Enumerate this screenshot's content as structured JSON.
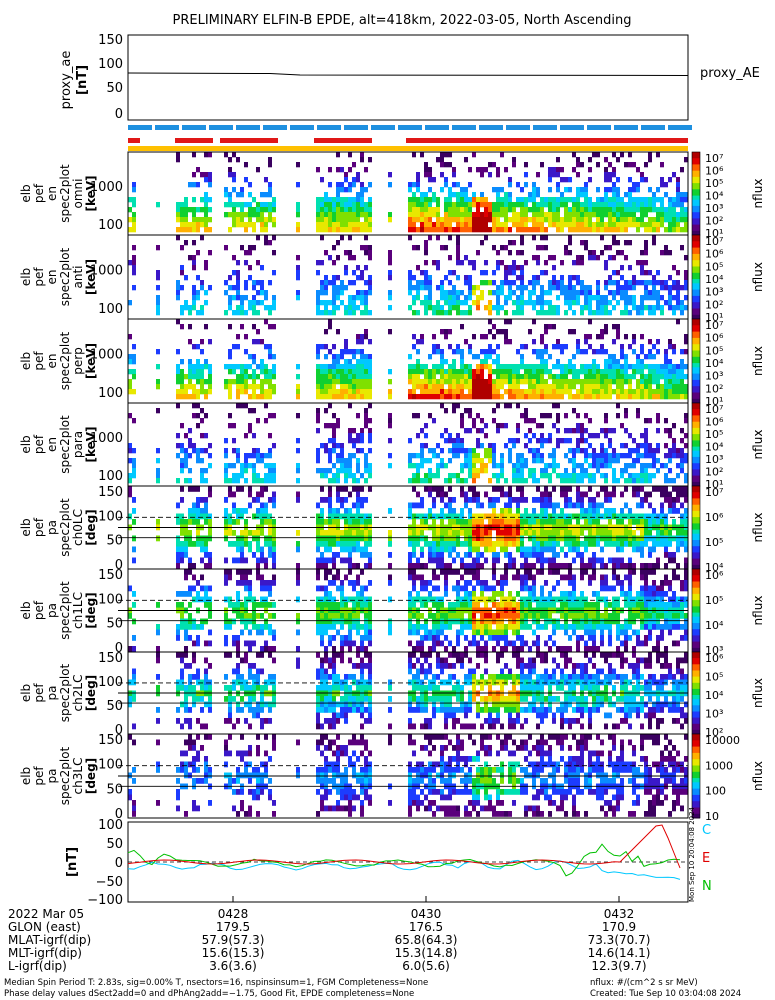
{
  "title": "PRELIMINARY ELFIN-B EPDE, alt=418km, 2022-03-05, North Ascending",
  "colors": {
    "ind_blue": "#1e90e0",
    "ind_red": "#e01818",
    "ind_yellow": "#ffc000",
    "field_c": "#00c8ff",
    "field_e": "#e00000",
    "field_n": "#00c000"
  },
  "panel1": {
    "ylabel": [
      "proxy_ae",
      "[nT]"
    ],
    "yticks": [
      "150",
      "100",
      "50",
      "0"
    ],
    "legend": "proxy_AE"
  },
  "spectrum_panels": [
    {
      "ylabel": [
        "elb",
        "pef",
        "en",
        "spec2plot",
        "omni",
        "[keV]"
      ],
      "yticks": [
        "1000",
        "100"
      ],
      "cticks": [
        "10⁷",
        "10⁶",
        "10⁵",
        "10⁴",
        "10³",
        "10²",
        "10¹"
      ],
      "cbar_label": "nflux"
    },
    {
      "ylabel": [
        "elb",
        "pef",
        "en",
        "spec2plot",
        "anti",
        "[keV]"
      ],
      "yticks": [
        "1000",
        "100"
      ],
      "cticks": [
        "10⁷",
        "10⁶",
        "10⁵",
        "10⁴",
        "10³",
        "10²",
        "10¹"
      ],
      "cbar_label": "nflux"
    },
    {
      "ylabel": [
        "elb",
        "pef",
        "en",
        "spec2plot",
        "perp",
        "[keV]"
      ],
      "yticks": [
        "1000",
        "100"
      ],
      "cticks": [
        "10⁷",
        "10⁶",
        "10⁵",
        "10⁴",
        "10³",
        "10²",
        "10¹"
      ],
      "cbar_label": "nflux"
    },
    {
      "ylabel": [
        "elb",
        "pef",
        "en",
        "spec2plot",
        "para",
        "[keV]"
      ],
      "yticks": [
        "1000",
        "100"
      ],
      "cticks": [
        "10⁷",
        "10⁶",
        "10⁵",
        "10⁴",
        "10³",
        "10²",
        "10¹"
      ],
      "cbar_label": "nflux"
    }
  ],
  "pitch_panels": [
    {
      "ylabel": [
        "elb",
        "pef",
        "pa",
        "spec2plot",
        "ch0LC",
        "[deg]"
      ],
      "yticks": [
        "150",
        "100",
        "50",
        "0"
      ],
      "cticks": [
        "10⁷",
        "10⁶",
        "10⁵",
        "10⁴"
      ],
      "cbar_label": "nflux"
    },
    {
      "ylabel": [
        "elb",
        "pef",
        "pa",
        "spec2plot",
        "ch1LC",
        "[deg]"
      ],
      "yticks": [
        "150",
        "100",
        "50",
        "0"
      ],
      "cticks": [
        "10⁶",
        "10⁵",
        "10⁴",
        "10³"
      ],
      "cbar_label": "nflux"
    },
    {
      "ylabel": [
        "elb",
        "pef",
        "pa",
        "spec2plot",
        "ch2LC",
        "[deg]"
      ],
      "yticks": [
        "150",
        "100",
        "50",
        "0"
      ],
      "cticks": [
        "10⁶",
        "10⁵",
        "10⁴",
        "10³",
        "10²"
      ],
      "cbar_label": "nflux"
    },
    {
      "ylabel": [
        "elb",
        "pef",
        "pa",
        "spec2plot",
        "ch3LC",
        "[deg]"
      ],
      "yticks": [
        "150",
        "100",
        "50",
        "0"
      ],
      "cticks": [
        "10000",
        "1000",
        "100",
        "10"
      ],
      "cbar_label": "nflux"
    }
  ],
  "panel_field": {
    "ylabel": "[nT]",
    "yticks": [
      "100",
      "50",
      "0",
      "−50",
      "−100"
    ],
    "legend": [
      "C",
      "E",
      "N"
    ],
    "side_stamp": "Mon Sep 10 20:04:08 2024"
  },
  "time_axis": {
    "ticks": [
      "0428",
      "0430",
      "0432"
    ]
  },
  "orbit_table": {
    "date": "2022 Mar 05",
    "rows": [
      {
        "label": "GLON (east)",
        "values": [
          "179.5",
          "176.5",
          "170.9"
        ]
      },
      {
        "label": "MLAT-igrf(dip)",
        "values": [
          "57.9(57.3)",
          "65.8(64.3)",
          "73.3(70.7)"
        ]
      },
      {
        "label": "MLT-igrf(dip)",
        "values": [
          "15.6(15.3)",
          "15.3(14.8)",
          "14.6(14.1)"
        ]
      },
      {
        "label": "L-igrf(dip)",
        "values": [
          "3.6(3.6)",
          "6.0(5.6)",
          "12.3(9.7)"
        ]
      }
    ]
  },
  "footer": {
    "line1_left": "Median Spin Period T: 2.83s, sig=0.00% T, nsectors=16, nspinsinsum=1, FGM Completeness=None",
    "line2_left": "Phase delay values dSect2add=0 and dPhAng2add=−1.75, Good Fit, EPDE completeness=None",
    "line1_right": "nflux: #/(cm^2 s sr MeV)",
    "line2_right": "Created: Tue Sep 10 03:04:08 2024"
  },
  "chart_data": {
    "type": "heatmap",
    "title": "PRELIMINARY ELFIN-B EPDE, alt=418km, 2022-03-05, North Ascending",
    "x_ticks": [
      "0428",
      "0430",
      "0432"
    ],
    "proxy_ae": {
      "ylim": [
        0,
        150
      ],
      "start": 80,
      "end": 76
    },
    "energy_ylim_keV": [
      50,
      6000
    ],
    "pitch_ylim_deg": [
      0,
      180
    ],
    "pitch_lines_deg": [
      68,
      90,
      112
    ],
    "field_ylim_nT": [
      -100,
      100
    ]
  }
}
